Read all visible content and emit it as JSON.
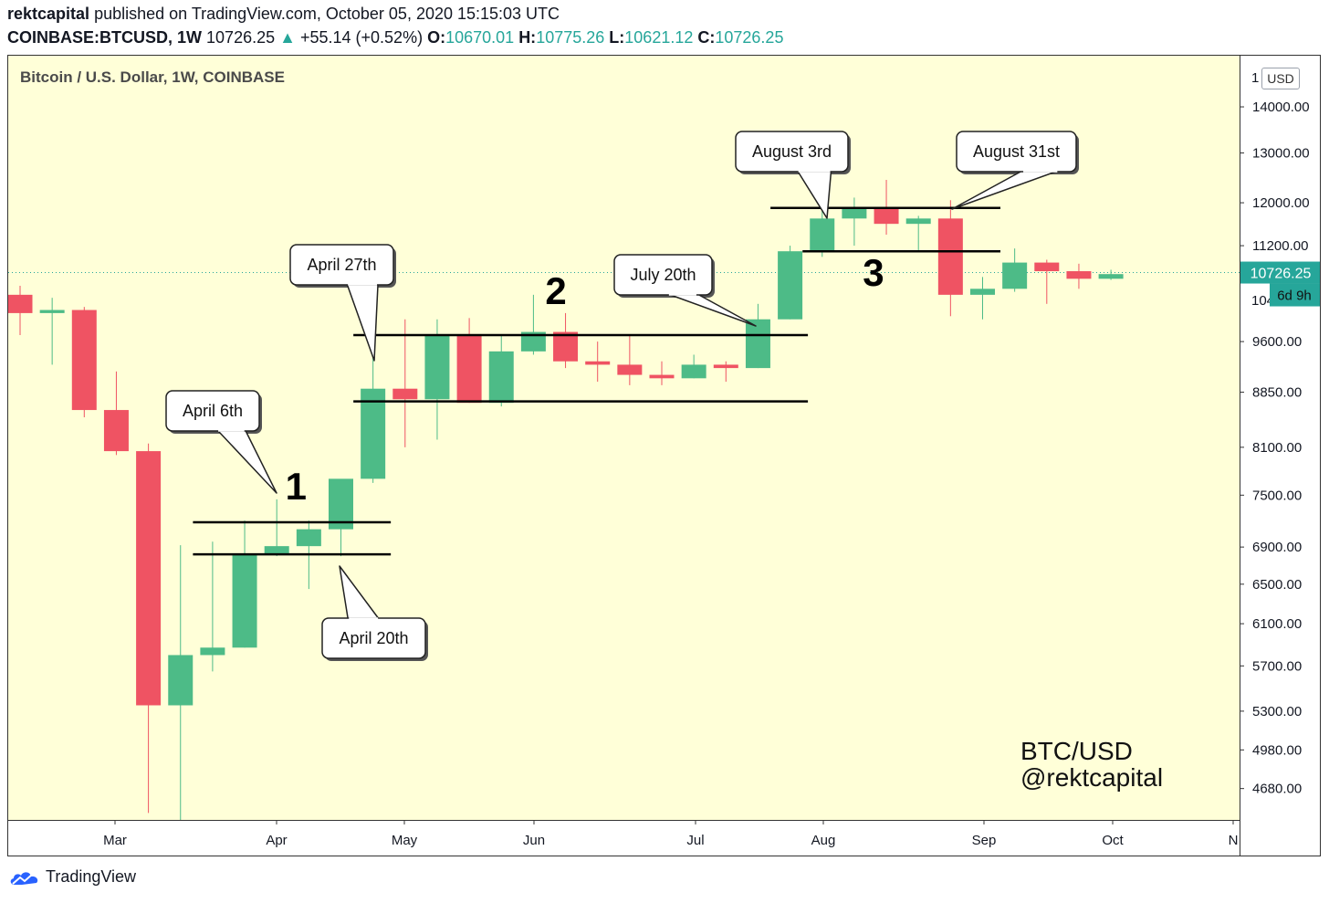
{
  "header": {
    "author": "rektcapital",
    "published_text": "published on TradingView.com, October 05, 2020 15:15:03 UTC",
    "symbol": "COINBASE:BTCUSD, 1W",
    "price": "10726.25",
    "change_arrow": "▲",
    "change": "+55.14 (+0.52%)",
    "open_label": "O:",
    "open": "10670.01",
    "high_label": "H:",
    "high": "10775.26",
    "low_label": "L:",
    "low": "10621.12",
    "close_label": "C:",
    "close": "10726.25"
  },
  "chart_title": "Bitcoin / U.S. Dollar, 1W, COINBASE",
  "currency_badge": "USD",
  "brand": "TradingView",
  "colors": {
    "background": "#ffffd8",
    "up": "#4dbb87",
    "down": "#ef5363",
    "accent": "#26a69a"
  },
  "chart_data": {
    "type": "candlestick",
    "title": "Bitcoin / U.S. Dollar, 1W, COINBASE",
    "y_scale": "log",
    "ylim": [
      4450,
      15200
    ],
    "y_ticks": [
      "4680.00",
      "4980.00",
      "5300.00",
      "5700.00",
      "6100.00",
      "6500.00",
      "6900.00",
      "7500.00",
      "8100.00",
      "8850.00",
      "9600.00",
      "11200.00",
      "12000.00",
      "13000.00",
      "14000.00"
    ],
    "x_ticks": [
      "Mar",
      "Apr",
      "May",
      "Jun",
      "Jul",
      "Aug",
      "Sep",
      "Oct",
      "N"
    ],
    "last_price_label": "10726.25",
    "countdown_label": "6d 9h",
    "candles": [
      {
        "o": 10350,
        "h": 10500,
        "l": 9700,
        "c": 10050
      },
      {
        "o": 10050,
        "h": 10300,
        "l": 9250,
        "c": 10100
      },
      {
        "o": 10100,
        "h": 10150,
        "l": 8500,
        "c": 8600
      },
      {
        "o": 8600,
        "h": 9150,
        "l": 8000,
        "c": 8050
      },
      {
        "o": 8050,
        "h": 8150,
        "l": 4500,
        "c": 5350
      },
      {
        "o": 5350,
        "h": 6920,
        "l": 4450,
        "c": 5800
      },
      {
        "o": 5800,
        "h": 6960,
        "l": 5650,
        "c": 5870
      },
      {
        "o": 5870,
        "h": 7200,
        "l": 5870,
        "c": 6820
      },
      {
        "o": 6820,
        "h": 7450,
        "l": 6800,
        "c": 6910
      },
      {
        "o": 6910,
        "h": 7200,
        "l": 6450,
        "c": 7100
      },
      {
        "o": 7100,
        "h": 7650,
        "l": 6800,
        "c": 7700
      },
      {
        "o": 7700,
        "h": 9450,
        "l": 7650,
        "c": 8900
      },
      {
        "o": 8900,
        "h": 9950,
        "l": 8100,
        "c": 8750
      },
      {
        "o": 8750,
        "h": 9950,
        "l": 8200,
        "c": 9700
      },
      {
        "o": 9700,
        "h": 9970,
        "l": 8700,
        "c": 8700
      },
      {
        "o": 8700,
        "h": 9700,
        "l": 8650,
        "c": 9450
      },
      {
        "o": 9450,
        "h": 10350,
        "l": 9400,
        "c": 9750
      },
      {
        "o": 9750,
        "h": 10050,
        "l": 9200,
        "c": 9300
      },
      {
        "o": 9300,
        "h": 9600,
        "l": 9000,
        "c": 9250
      },
      {
        "o": 9250,
        "h": 9700,
        "l": 8950,
        "c": 9100
      },
      {
        "o": 9100,
        "h": 9300,
        "l": 8950,
        "c": 9050
      },
      {
        "o": 9050,
        "h": 9400,
        "l": 9050,
        "c": 9250
      },
      {
        "o": 9250,
        "h": 9300,
        "l": 9000,
        "c": 9200
      },
      {
        "o": 9200,
        "h": 10200,
        "l": 9200,
        "c": 9950
      },
      {
        "o": 9950,
        "h": 11200,
        "l": 9950,
        "c": 11100
      },
      {
        "o": 11100,
        "h": 12200,
        "l": 11000,
        "c": 11700
      },
      {
        "o": 11700,
        "h": 12100,
        "l": 11200,
        "c": 11900
      },
      {
        "o": 11900,
        "h": 12450,
        "l": 11400,
        "c": 11600
      },
      {
        "o": 11600,
        "h": 11750,
        "l": 11100,
        "c": 11700
      },
      {
        "o": 11700,
        "h": 12050,
        "l": 10000,
        "c": 10350
      },
      {
        "o": 10350,
        "h": 10650,
        "l": 9950,
        "c": 10450
      },
      {
        "o": 10450,
        "h": 11150,
        "l": 10400,
        "c": 10900
      },
      {
        "o": 10900,
        "h": 10950,
        "l": 10200,
        "c": 10750
      },
      {
        "o": 10750,
        "h": 10880,
        "l": 10450,
        "c": 10620
      },
      {
        "o": 10620,
        "h": 10775,
        "l": 10600,
        "c": 10700
      }
    ],
    "range_lines": [
      {
        "y": 7180,
        "from": 6,
        "to": 11
      },
      {
        "y": 6820,
        "from": 6,
        "to": 11
      },
      {
        "y": 9700,
        "from": 11,
        "to": 24
      },
      {
        "y": 8720,
        "from": 11,
        "to": 24
      },
      {
        "y": 11900,
        "from": 24,
        "to": 30
      },
      {
        "y": 11100,
        "from": 25,
        "to": 30
      }
    ],
    "callouts": [
      {
        "label": "April 6th",
        "candle": 8
      },
      {
        "label": "April 20th",
        "candle": 10
      },
      {
        "label": "April 27th",
        "candle": 11
      },
      {
        "label": "July 20th",
        "candle": 23
      },
      {
        "label": "August 3rd",
        "candle": 25
      },
      {
        "label": "August 31st",
        "candle": 29
      }
    ],
    "numbers": [
      {
        "label": "1",
        "candle": 8.6,
        "y": 7450
      },
      {
        "label": "2",
        "candle": 16.7,
        "y": 10200
      },
      {
        "label": "3",
        "candle": 26.6,
        "y": 10500
      }
    ],
    "watermark": [
      "BTC/USD",
      "@rektcapital"
    ]
  }
}
